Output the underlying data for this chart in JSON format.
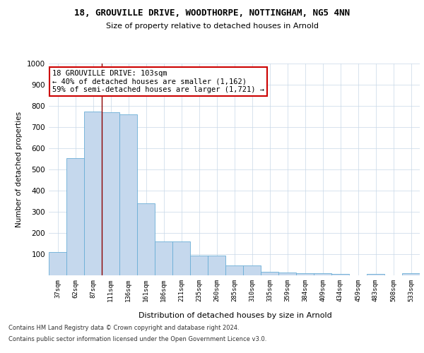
{
  "title1": "18, GROUVILLE DRIVE, WOODTHORPE, NOTTINGHAM, NG5 4NN",
  "title2": "Size of property relative to detached houses in Arnold",
  "xlabel": "Distribution of detached houses by size in Arnold",
  "ylabel": "Number of detached properties",
  "categories": [
    "37sqm",
    "62sqm",
    "87sqm",
    "111sqm",
    "136sqm",
    "161sqm",
    "186sqm",
    "211sqm",
    "235sqm",
    "260sqm",
    "285sqm",
    "310sqm",
    "335sqm",
    "359sqm",
    "384sqm",
    "409sqm",
    "434sqm",
    "459sqm",
    "483sqm",
    "508sqm",
    "533sqm"
  ],
  "values": [
    110,
    555,
    775,
    770,
    760,
    340,
    160,
    160,
    95,
    95,
    48,
    48,
    18,
    14,
    10,
    10,
    8,
    0,
    8,
    0,
    10
  ],
  "bar_color": "#c5d8ed",
  "bar_edge_color": "#6aaed6",
  "vline_x": 2.5,
  "vline_color": "#8b0000",
  "annotation_text": "18 GROUVILLE DRIVE: 103sqm\n← 40% of detached houses are smaller (1,162)\n59% of semi-detached houses are larger (1,721) →",
  "annotation_box_color": "white",
  "annotation_box_edge": "#cc0000",
  "footer1": "Contains HM Land Registry data © Crown copyright and database right 2024.",
  "footer2": "Contains public sector information licensed under the Open Government Licence v3.0.",
  "ylim": [
    0,
    1000
  ],
  "yticks": [
    0,
    100,
    200,
    300,
    400,
    500,
    600,
    700,
    800,
    900,
    1000
  ],
  "background_color": "#ffffff",
  "grid_color": "#c8d8e8"
}
